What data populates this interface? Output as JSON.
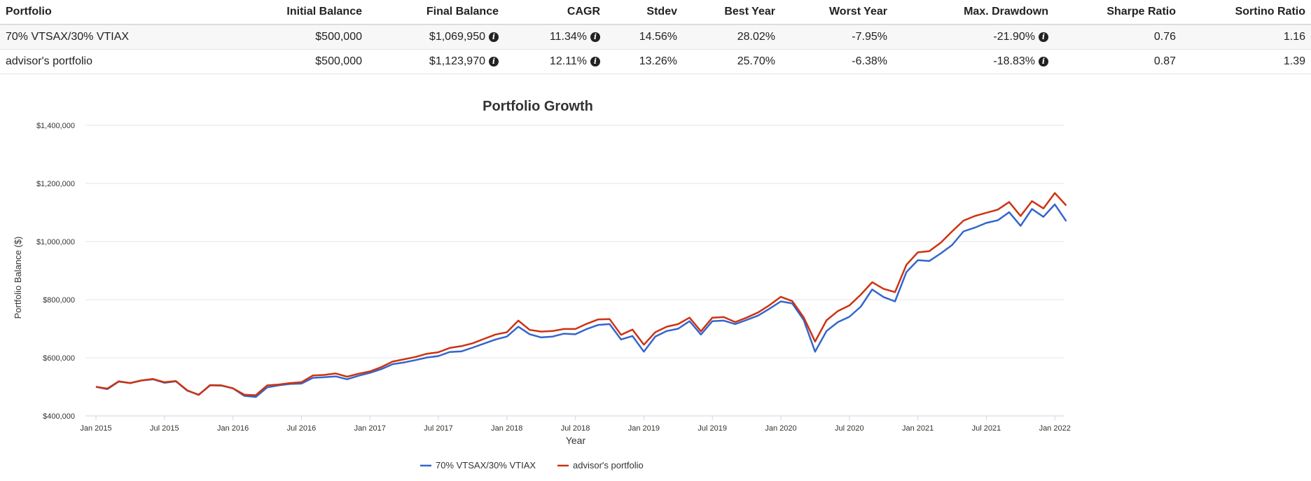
{
  "table": {
    "headers": [
      "Portfolio",
      "Initial Balance",
      "Final Balance",
      "CAGR",
      "Stdev",
      "Best Year",
      "Worst Year",
      "Max. Drawdown",
      "Sharpe Ratio",
      "Sortino Ratio"
    ],
    "rows": [
      {
        "portfolio": "70% VTSAX/30% VTIAX",
        "initial": "$500,000",
        "final": "$1,069,950",
        "cagr": "11.34%",
        "stdev": "14.56%",
        "best": "28.02%",
        "worst": "-7.95%",
        "drawdown": "-21.90%",
        "sharpe": "0.76",
        "sortino": "1.16"
      },
      {
        "portfolio": "advisor's portfolio",
        "initial": "$500,000",
        "final": "$1,123,970",
        "cagr": "12.11%",
        "stdev": "13.26%",
        "best": "25.70%",
        "worst": "-6.38%",
        "drawdown": "-18.83%",
        "sharpe": "0.87",
        "sortino": "1.39"
      }
    ],
    "info_icon": "info-icon"
  },
  "chart_data": {
    "type": "line",
    "title": "Portfolio Growth",
    "xlabel": "Year",
    "ylabel": "Portfolio Balance ($)",
    "ylim": [
      400000,
      1400000
    ],
    "yticks": [
      400000,
      600000,
      800000,
      1000000,
      1200000,
      1400000
    ],
    "ytick_labels": [
      "$400,000",
      "$600,000",
      "$800,000",
      "$1,000,000",
      "$1,200,000",
      "$1,400,000"
    ],
    "xtick_labels": [
      "Jan 2015",
      "Jul 2015",
      "Jan 2016",
      "Jul 2016",
      "Jan 2017",
      "Jul 2017",
      "Jan 2018",
      "Jul 2018",
      "Jan 2019",
      "Jul 2019",
      "Jan 2020",
      "Jul 2020",
      "Jan 2021",
      "Jul 2021",
      "Jan 2022"
    ],
    "x_start": "Jan 2015",
    "x_unit": "month",
    "legend_position": "bottom-center",
    "grid": true,
    "series": [
      {
        "name": "70% VTSAX/30% VTIAX",
        "color": "#3366cc",
        "values": [
          500000,
          492000,
          518000,
          513000,
          522000,
          526000,
          514000,
          519000,
          487000,
          473000,
          505000,
          504000,
          495000,
          469000,
          465000,
          498000,
          505000,
          510000,
          511000,
          531000,
          533000,
          536000,
          526000,
          538000,
          548000,
          561000,
          578000,
          584000,
          592000,
          601000,
          606000,
          620000,
          622000,
          635000,
          649000,
          663000,
          673000,
          707000,
          681000,
          670000,
          673000,
          683000,
          681000,
          699000,
          713000,
          716000,
          663000,
          675000,
          621000,
          673000,
          692000,
          700000,
          726000,
          680000,
          726000,
          728000,
          716000,
          730000,
          745000,
          769000,
          794000,
          787000,
          730000,
          621000,
          692000,
          723000,
          741000,
          776000,
          835000,
          809000,
          794000,
          895000,
          936000,
          933000,
          959000,
          988000,
          1035000,
          1048000,
          1064000,
          1073000,
          1101000,
          1054000,
          1112000,
          1085000,
          1128000,
          1070000
        ]
      },
      {
        "name": "advisor's portfolio",
        "color": "#cc3311",
        "values": [
          500000,
          494000,
          519000,
          513000,
          522000,
          527000,
          516000,
          520000,
          488000,
          472000,
          506000,
          505000,
          495000,
          473000,
          471000,
          505000,
          508000,
          513000,
          516000,
          539000,
          541000,
          546000,
          535000,
          545000,
          553000,
          568000,
          587000,
          595000,
          603000,
          614000,
          619000,
          634000,
          640000,
          650000,
          665000,
          680000,
          688000,
          728000,
          696000,
          690000,
          692000,
          699000,
          699000,
          717000,
          732000,
          733000,
          679000,
          697000,
          645000,
          688000,
          707000,
          716000,
          738000,
          691000,
          738000,
          740000,
          723000,
          738000,
          756000,
          781000,
          810000,
          795000,
          739000,
          656000,
          729000,
          761000,
          780000,
          817000,
          860000,
          837000,
          826000,
          920000,
          963000,
          967000,
          996000,
          1035000,
          1072000,
          1088000,
          1099000,
          1110000,
          1136000,
          1088000,
          1139000,
          1114000,
          1167000,
          1124000
        ]
      }
    ]
  }
}
